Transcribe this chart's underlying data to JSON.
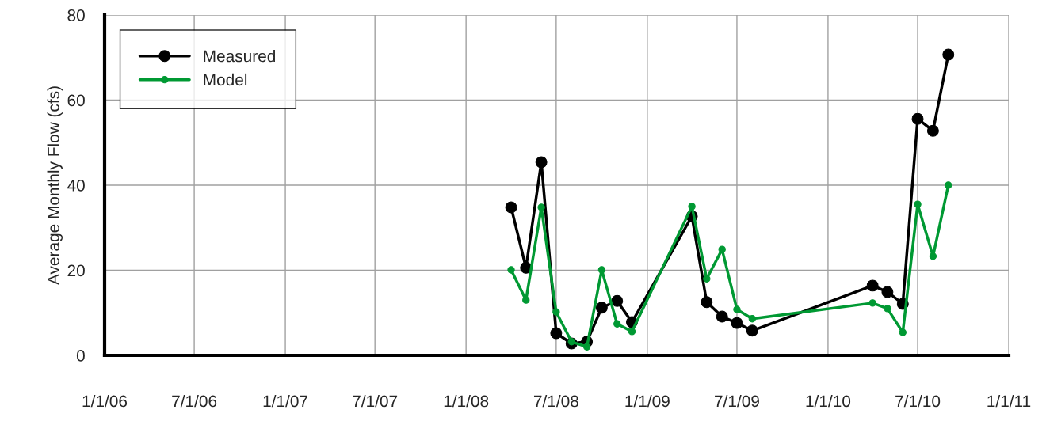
{
  "chart_data": {
    "type": "line",
    "ylabel": "Average Monthly Flow (cfs)",
    "x": [
      "2008-04-01",
      "2008-05-01",
      "2008-06-01",
      "2008-07-01",
      "2008-08-01",
      "2008-09-01",
      "2008-10-01",
      "2008-11-01",
      "2008-12-01",
      "2009-04-01",
      "2009-05-01",
      "2009-06-01",
      "2009-07-01",
      "2009-08-01",
      "2010-04-01",
      "2010-05-01",
      "2010-06-01",
      "2010-07-01",
      "2010-08-01",
      "2010-09-01"
    ],
    "series": [
      {
        "name": "Measured",
        "color": "#000000",
        "values": [
          34.8,
          20.6,
          45.4,
          5.2,
          2.8,
          3.2,
          11.2,
          12.8,
          7.8,
          32.7,
          12.5,
          9.1,
          7.6,
          5.8,
          16.4,
          14.9,
          12.1,
          55.6,
          52.8,
          70.7
        ]
      },
      {
        "name": "Model",
        "color": "#009933",
        "values": [
          20.1,
          13.0,
          34.8,
          10.2,
          3.2,
          2.0,
          20.1,
          7.4,
          5.6,
          35.0,
          18.0,
          24.9,
          10.8,
          8.6,
          12.3,
          11.0,
          5.4,
          35.5,
          23.3,
          40.0
        ]
      }
    ],
    "xlim": [
      "2006-01-01",
      "2011-01-01"
    ],
    "xticks": [
      {
        "value": "2006-01-01",
        "label": "1/1/06"
      },
      {
        "value": "2006-07-01",
        "label": "7/1/06"
      },
      {
        "value": "2007-01-01",
        "label": "1/1/07"
      },
      {
        "value": "2007-07-01",
        "label": "7/1/07"
      },
      {
        "value": "2008-01-01",
        "label": "1/1/08"
      },
      {
        "value": "2008-07-01",
        "label": "7/1/08"
      },
      {
        "value": "2009-01-01",
        "label": "1/1/09"
      },
      {
        "value": "2009-07-01",
        "label": "7/1/09"
      },
      {
        "value": "2010-01-01",
        "label": "1/1/10"
      },
      {
        "value": "2010-07-01",
        "label": "7/1/10"
      },
      {
        "value": "2011-01-01",
        "label": "1/1/11"
      }
    ],
    "ylim": [
      0,
      80
    ],
    "yticks": [
      0,
      20,
      40,
      60,
      80
    ],
    "grid": true,
    "legend": "top left",
    "marker": "circle",
    "line_style": "solid"
  }
}
